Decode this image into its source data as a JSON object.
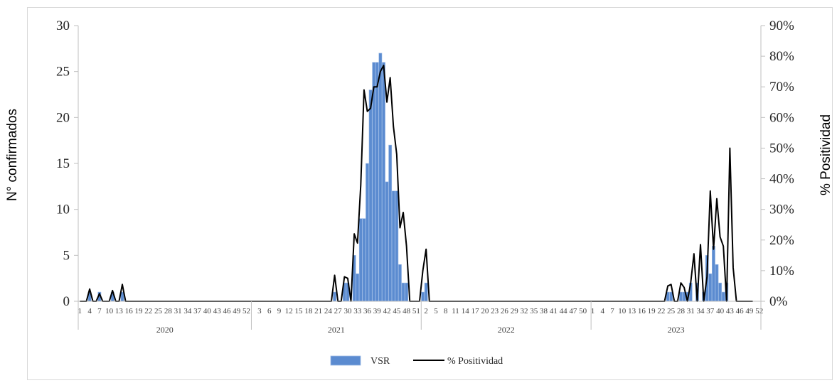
{
  "chart_data": {
    "type": "bar+line",
    "title": "",
    "ylabel_left": "N° confirmados",
    "ylabel_right": "% Positividad",
    "y_left_ticks": [
      "0",
      "5",
      "10",
      "15",
      "20",
      "25",
      "30"
    ],
    "y_right_ticks": [
      "0%",
      "10%",
      "20%",
      "30%",
      "40%",
      "50%",
      "60%",
      "70%",
      "80%",
      "90%"
    ],
    "ylim_left": [
      0,
      30
    ],
    "ylim_right": [
      0,
      90
    ],
    "legend_position": "bottom",
    "legend": [
      "VSR",
      "% Positividad"
    ],
    "x_axis": {
      "years": [
        {
          "label": "2020",
          "weeks": 53
        },
        {
          "label": "2021",
          "weeks": 52
        },
        {
          "label": "2022",
          "weeks": 52
        },
        {
          "label": "2023",
          "weeks": 52
        }
      ],
      "tick_labels": [
        [
          "1",
          "4",
          "7",
          "10",
          "13",
          "16",
          "19",
          "22",
          "25",
          "28",
          "31",
          "34",
          "37",
          "40",
          "43",
          "46",
          "49",
          "52"
        ],
        [
          "3",
          "6",
          "9",
          "12",
          "15",
          "18",
          "21",
          "24",
          "27",
          "30",
          "33",
          "36",
          "39",
          "42",
          "45",
          "48",
          "51"
        ],
        [
          "2",
          "5",
          "8",
          "11",
          "14",
          "17",
          "20",
          "23",
          "26",
          "29",
          "32",
          "35",
          "38",
          "41",
          "44",
          "47",
          "50"
        ],
        [
          "1",
          "4",
          "7",
          "10",
          "13",
          "16",
          "19",
          "22",
          "25",
          "28",
          "31",
          "34",
          "37",
          "40",
          "43",
          "46",
          "49",
          "52"
        ]
      ]
    },
    "series": [
      {
        "name": "VSR",
        "type": "bar",
        "axis": "left",
        "data": [
          [
            0,
            0
          ],
          [
            1,
            0
          ],
          [
            2,
            0
          ],
          [
            3,
            1
          ],
          [
            4,
            0
          ],
          [
            5,
            0
          ],
          [
            6,
            1
          ],
          [
            7,
            0
          ],
          [
            8,
            0
          ],
          [
            9,
            0
          ],
          [
            10,
            1
          ],
          [
            11,
            0
          ],
          [
            12,
            0
          ],
          [
            13,
            1
          ],
          [
            14,
            0
          ],
          [
            78,
            1
          ],
          [
            80,
            0
          ],
          [
            81,
            2
          ],
          [
            82,
            2
          ],
          [
            83,
            0
          ],
          [
            84,
            5
          ],
          [
            85,
            3
          ],
          [
            86,
            9
          ],
          [
            87,
            9
          ],
          [
            88,
            15
          ],
          [
            89,
            23
          ],
          [
            90,
            26
          ],
          [
            91,
            26
          ],
          [
            92,
            27
          ],
          [
            93,
            26
          ],
          [
            94,
            13
          ],
          [
            95,
            17
          ],
          [
            96,
            12
          ],
          [
            97,
            12
          ],
          [
            98,
            4
          ],
          [
            99,
            2
          ],
          [
            100,
            2
          ],
          [
            105,
            1
          ],
          [
            106,
            2
          ],
          [
            180,
            1
          ],
          [
            181,
            1
          ],
          [
            184,
            1
          ],
          [
            185,
            1
          ],
          [
            186,
            1
          ],
          [
            187,
            2
          ],
          [
            188,
            0
          ],
          [
            189,
            2
          ],
          [
            190,
            0
          ],
          [
            191,
            1
          ],
          [
            192,
            5
          ],
          [
            193,
            3
          ],
          [
            194,
            6
          ],
          [
            195,
            4
          ],
          [
            196,
            2
          ],
          [
            197,
            1
          ],
          [
            198,
            2
          ]
        ]
      },
      {
        "name": "% Positividad",
        "type": "line",
        "axis": "right",
        "data": [
          [
            0,
            0
          ],
          [
            2,
            0
          ],
          [
            3,
            4
          ],
          [
            4,
            0
          ],
          [
            5,
            0
          ],
          [
            6,
            2.5
          ],
          [
            7,
            0
          ],
          [
            8,
            0
          ],
          [
            9,
            0
          ],
          [
            10,
            3.5
          ],
          [
            11,
            0
          ],
          [
            12,
            0
          ],
          [
            13,
            5.5
          ],
          [
            14,
            0
          ],
          [
            77,
            0
          ],
          [
            78,
            8.5
          ],
          [
            79,
            0
          ],
          [
            80,
            0
          ],
          [
            81,
            8
          ],
          [
            82,
            7.5
          ],
          [
            83,
            0
          ],
          [
            84,
            22
          ],
          [
            85,
            19
          ],
          [
            86,
            38
          ],
          [
            87,
            69
          ],
          [
            88,
            62
          ],
          [
            89,
            63
          ],
          [
            90,
            70
          ],
          [
            91,
            70
          ],
          [
            92,
            75
          ],
          [
            93,
            77
          ],
          [
            94,
            65
          ],
          [
            95,
            73
          ],
          [
            96,
            57
          ],
          [
            97,
            48
          ],
          [
            98,
            24
          ],
          [
            99,
            29
          ],
          [
            100,
            18
          ],
          [
            101,
            0
          ],
          [
            104,
            0
          ],
          [
            105,
            10
          ],
          [
            106,
            17
          ],
          [
            107,
            0
          ],
          [
            178,
            0
          ],
          [
            179,
            0
          ],
          [
            180,
            5
          ],
          [
            181,
            5.5
          ],
          [
            182,
            0
          ],
          [
            183,
            0
          ],
          [
            184,
            6
          ],
          [
            185,
            4.5
          ],
          [
            186,
            0
          ],
          [
            187,
            6
          ],
          [
            188,
            15.5
          ],
          [
            189,
            0
          ],
          [
            190,
            18.5
          ],
          [
            191,
            0
          ],
          [
            192,
            8
          ],
          [
            193,
            36
          ],
          [
            194,
            17
          ],
          [
            195,
            33.5
          ],
          [
            196,
            21
          ],
          [
            197,
            18
          ],
          [
            198,
            0
          ],
          [
            199,
            50
          ],
          [
            200,
            11
          ],
          [
            201,
            0
          ],
          [
            206,
            0
          ]
        ]
      }
    ]
  },
  "colors": {
    "bar": "#5b8bd0",
    "bar_edge": "#9dbbe6",
    "line": "#000000",
    "axis": "#bfbfbf"
  }
}
